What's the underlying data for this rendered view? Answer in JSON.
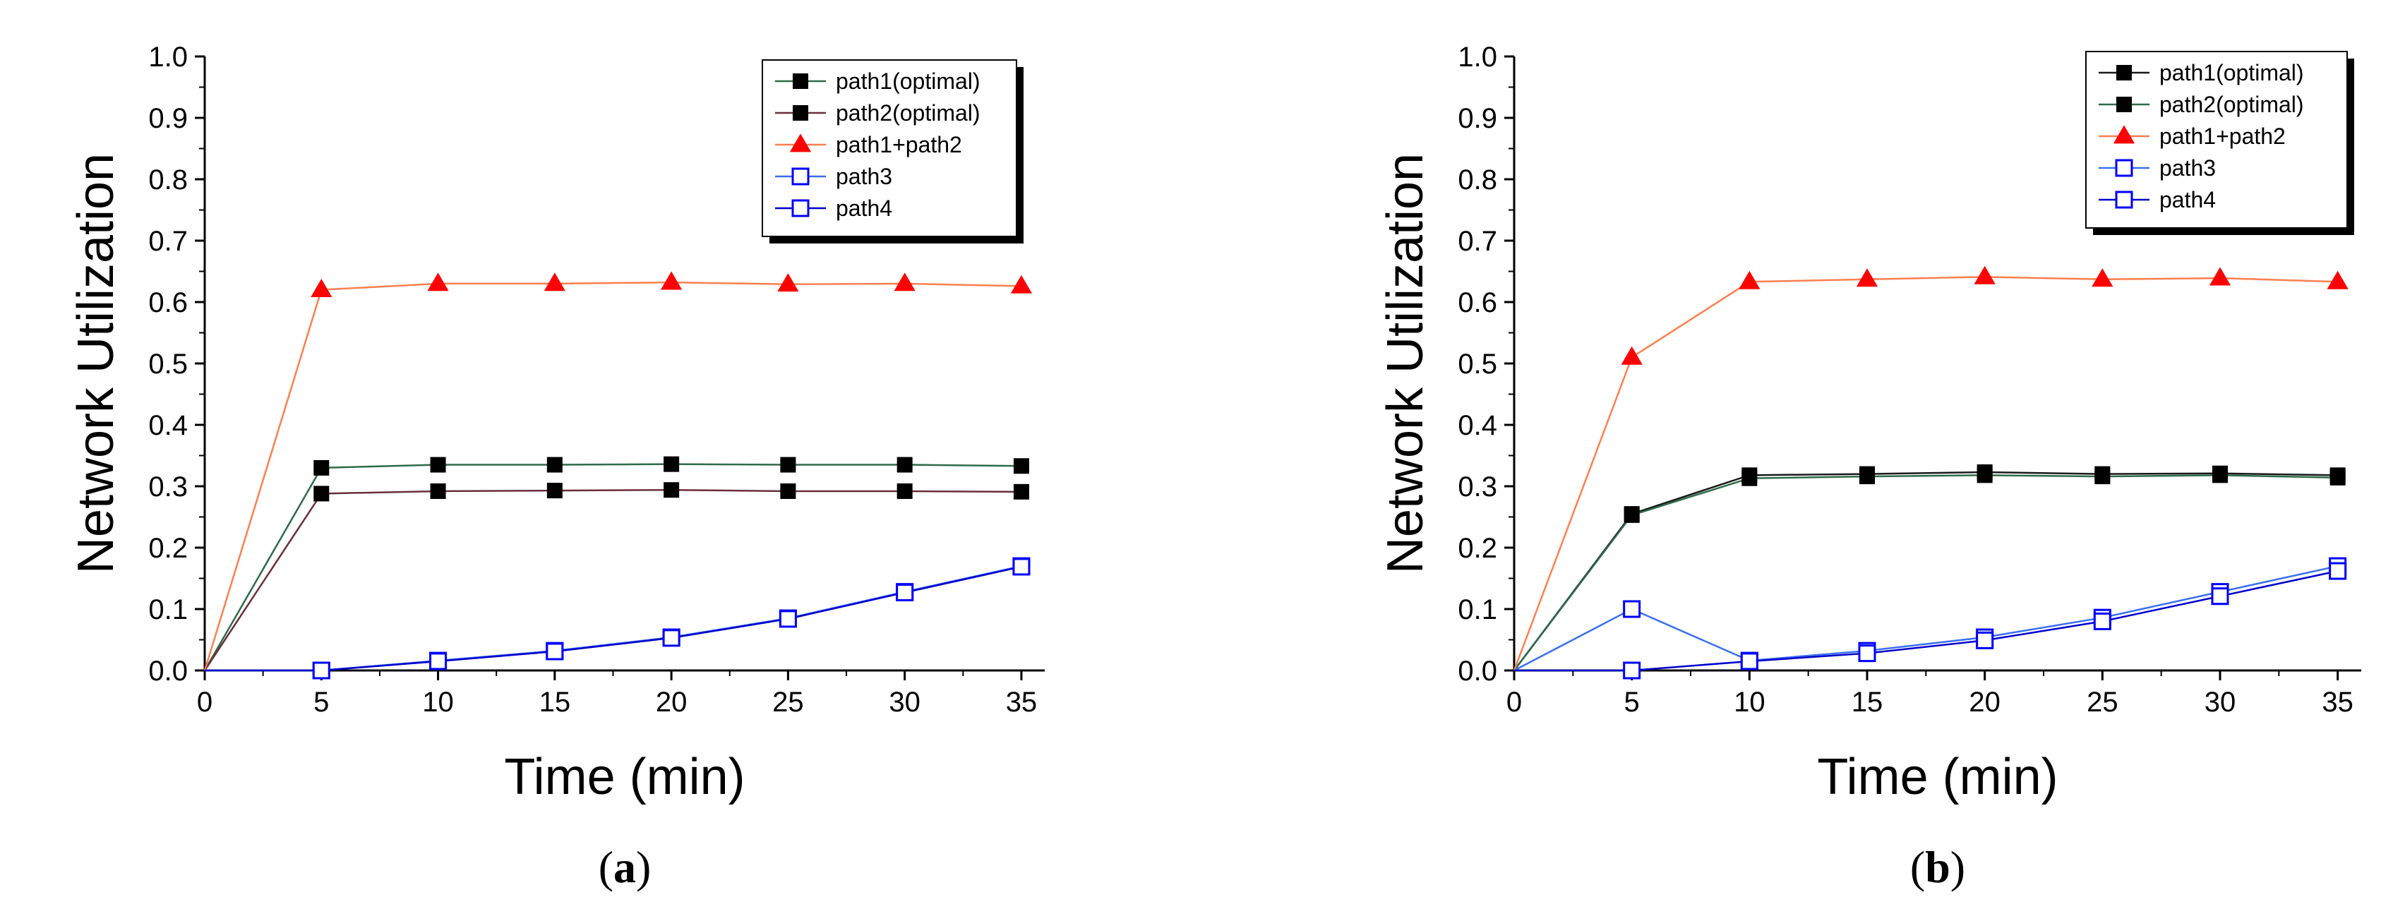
{
  "chart_data": [
    {
      "type": "line",
      "caption": "(a)",
      "caption_paren_open": "(",
      "caption_letter": "a",
      "caption_paren_close": ")",
      "xlabel": "Time (min)",
      "ylabel": "Network Utilization",
      "xlim": [
        0,
        36
      ],
      "ylim": [
        0,
        1.0
      ],
      "xticks": [
        0,
        5,
        10,
        15,
        20,
        25,
        30,
        35
      ],
      "xtick_labels": [
        "0",
        "5",
        "10",
        "15",
        "20",
        "25",
        "30",
        "35"
      ],
      "yticks": [
        0.0,
        0.1,
        0.2,
        0.3,
        0.4,
        0.5,
        0.6,
        0.7,
        0.8,
        0.9,
        1.0
      ],
      "ytick_labels": [
        "0.0",
        "0.1",
        "0.2",
        "0.3",
        "0.4",
        "0.5",
        "0.6",
        "0.7",
        "0.8",
        "0.9",
        "1.0"
      ],
      "legend_position": "top-right",
      "series": [
        {
          "name": "path1(optimal)",
          "marker": "square-filled",
          "color": "#000000",
          "line_color": "#2e6b4a",
          "x": [
            0,
            5,
            10,
            15,
            20,
            25,
            30,
            35
          ],
          "y": [
            0.0,
            0.33,
            0.335,
            0.335,
            0.336,
            0.335,
            0.335,
            0.333
          ]
        },
        {
          "name": "path2(optimal)",
          "marker": "square-filled",
          "color": "#000000",
          "line_color": "#6b2e3a",
          "x": [
            0,
            5,
            10,
            15,
            20,
            25,
            30,
            35
          ],
          "y": [
            0.0,
            0.288,
            0.292,
            0.293,
            0.294,
            0.292,
            0.292,
            0.291
          ]
        },
        {
          "name": "path1+path2",
          "marker": "triangle-filled",
          "color": "#ff0000",
          "line_color": "#ff7f50",
          "x": [
            0,
            5,
            10,
            15,
            20,
            25,
            30,
            35
          ],
          "y": [
            0.0,
            0.62,
            0.63,
            0.63,
            0.632,
            0.629,
            0.63,
            0.626
          ]
        },
        {
          "name": "path3",
          "marker": "square-open",
          "color": "#0000ff",
          "line_color": "#3a6ff0",
          "x": [
            0,
            5,
            10,
            15,
            20,
            25,
            30,
            35
          ],
          "y": [
            0.0,
            0.0,
            0.016,
            0.032,
            0.054,
            0.085,
            0.128,
            0.17
          ]
        },
        {
          "name": "path4",
          "marker": "square-open",
          "color": "#0000ff",
          "line_color": "#0000cc",
          "x": [
            0,
            5,
            10,
            15,
            20,
            25,
            30,
            35
          ],
          "y": [
            0.0,
            0.0,
            0.015,
            0.031,
            0.053,
            0.084,
            0.127,
            0.169
          ]
        }
      ]
    },
    {
      "type": "line",
      "caption": "(b)",
      "caption_paren_open": "(",
      "caption_letter": "b",
      "caption_paren_close": ")",
      "xlabel": "Time (min)",
      "ylabel": "Network Utilization",
      "xlim": [
        0,
        36
      ],
      "ylim": [
        0,
        1.0
      ],
      "xticks": [
        0,
        5,
        10,
        15,
        20,
        25,
        30,
        35
      ],
      "xtick_labels": [
        "0",
        "5",
        "10",
        "15",
        "20",
        "25",
        "30",
        "35"
      ],
      "yticks": [
        0.0,
        0.1,
        0.2,
        0.3,
        0.4,
        0.5,
        0.6,
        0.7,
        0.8,
        0.9,
        1.0
      ],
      "ytick_labels": [
        "0.0",
        "0.1",
        "0.2",
        "0.3",
        "0.4",
        "0.5",
        "0.6",
        "0.7",
        "0.8",
        "0.9",
        "1.0"
      ],
      "legend_position": "top-right",
      "series": [
        {
          "name": "path1(optimal)",
          "marker": "square-filled",
          "color": "#000000",
          "line_color": "#1a1a1a",
          "x": [
            0,
            5,
            10,
            15,
            20,
            25,
            30,
            35
          ],
          "y": [
            0.0,
            0.255,
            0.318,
            0.32,
            0.323,
            0.32,
            0.321,
            0.318
          ]
        },
        {
          "name": "path2(optimal)",
          "marker": "square-filled",
          "color": "#000000",
          "line_color": "#2e6b4a",
          "x": [
            0,
            5,
            10,
            15,
            20,
            25,
            30,
            35
          ],
          "y": [
            0.0,
            0.253,
            0.313,
            0.316,
            0.318,
            0.316,
            0.318,
            0.314
          ]
        },
        {
          "name": "path1+path2",
          "marker": "triangle-filled",
          "color": "#ff0000",
          "line_color": "#ff7f50",
          "x": [
            0,
            5,
            10,
            15,
            20,
            25,
            30,
            35
          ],
          "y": [
            0.0,
            0.51,
            0.633,
            0.637,
            0.641,
            0.637,
            0.639,
            0.633
          ]
        },
        {
          "name": "path3",
          "marker": "square-open",
          "color": "#0000ff",
          "line_color": "#3a6ff0",
          "x": [
            0,
            5,
            10,
            15,
            20,
            25,
            30,
            35
          ],
          "y": [
            0.0,
            0.1,
            0.016,
            0.032,
            0.054,
            0.086,
            0.128,
            0.17
          ]
        },
        {
          "name": "path4",
          "marker": "square-open",
          "color": "#0000ff",
          "line_color": "#0000cc",
          "x": [
            0,
            5,
            10,
            15,
            20,
            25,
            30,
            35
          ],
          "y": [
            0.0,
            0.0,
            0.015,
            0.028,
            0.049,
            0.08,
            0.121,
            0.162
          ]
        }
      ]
    }
  ]
}
